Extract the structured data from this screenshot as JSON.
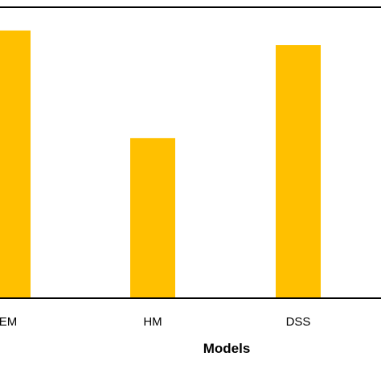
{
  "chart_data": {
    "type": "bar",
    "categories": [
      "EM",
      "HM",
      "DSS"
    ],
    "values": [
      0.92,
      0.55,
      0.87
    ],
    "ylim": [
      0,
      1
    ],
    "xlabel": "Models",
    "ylabel": "",
    "title": "",
    "grid": false,
    "legend": "none",
    "colors": {
      "bar": "#FFC000",
      "axis": "#000000",
      "text": "#000000"
    }
  }
}
